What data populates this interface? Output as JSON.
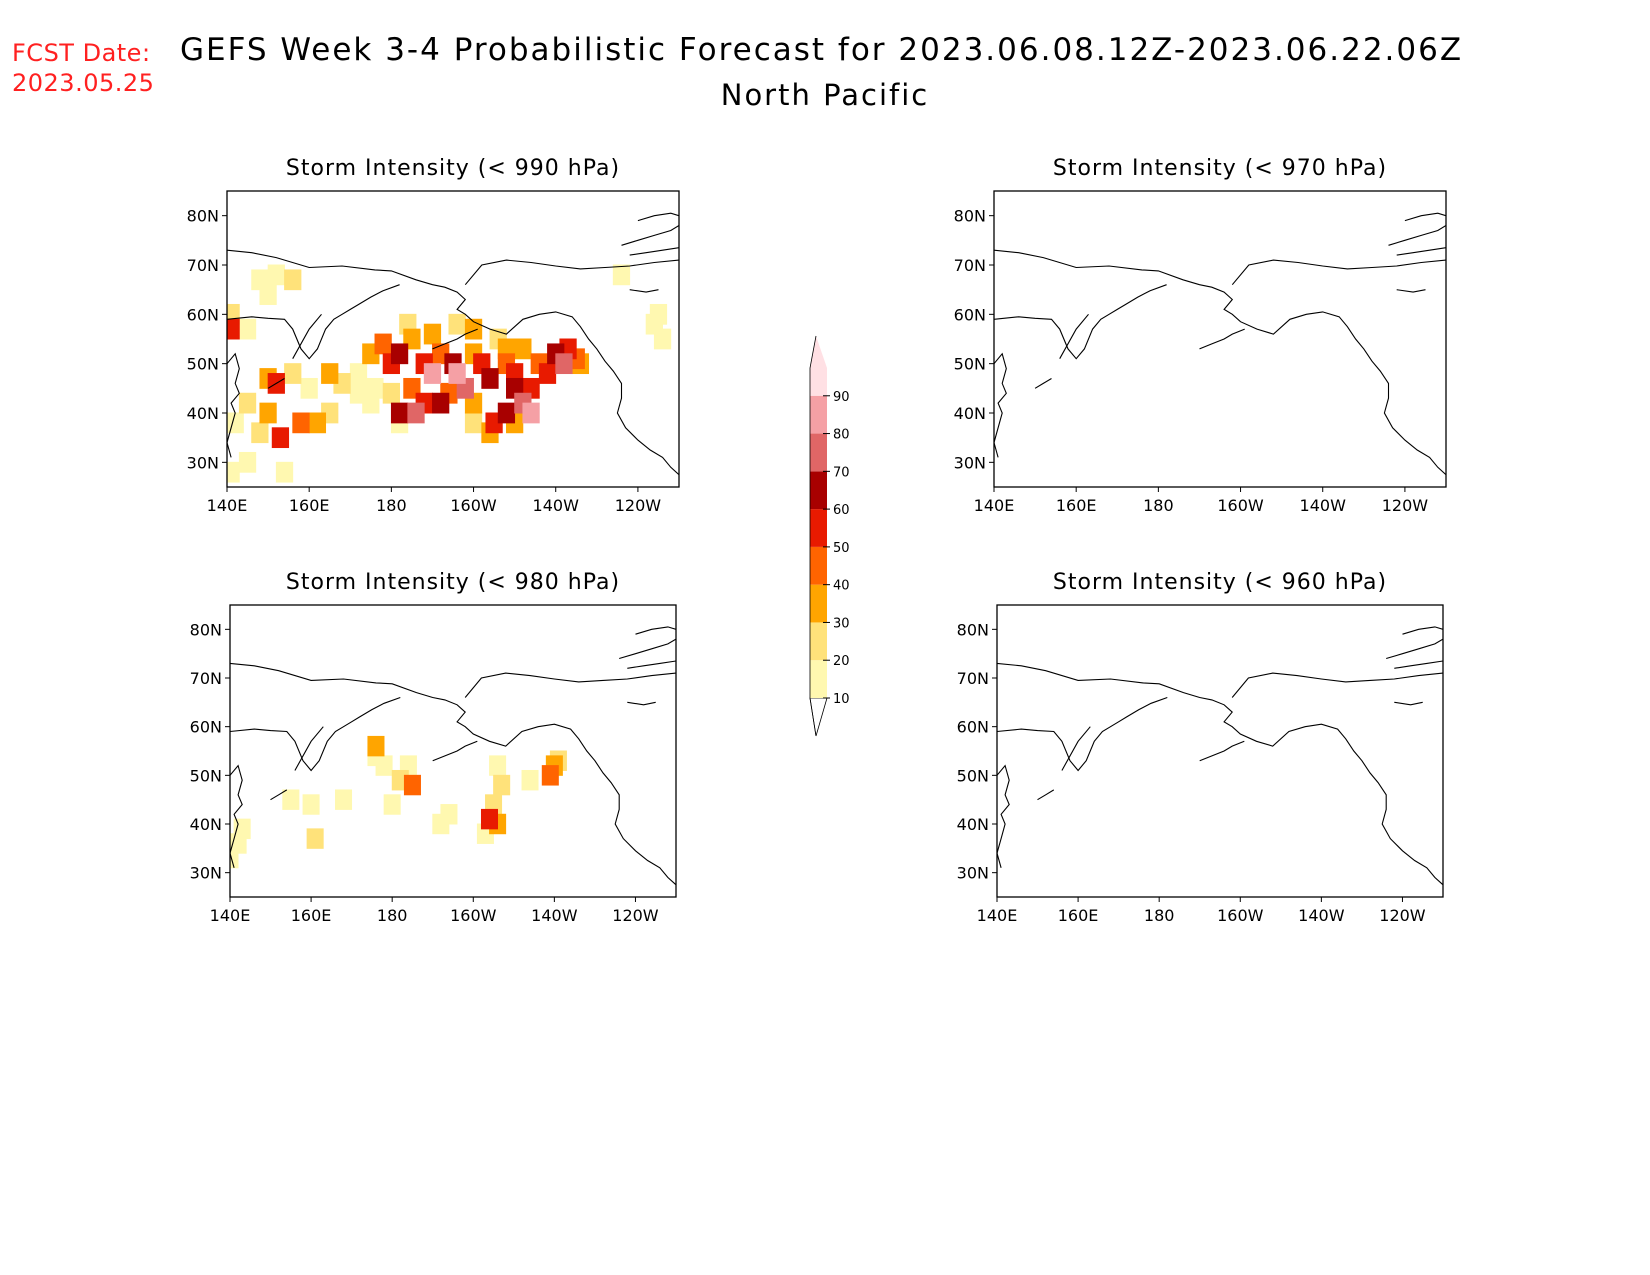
{
  "header": {
    "fcst_label": "FCST Date:",
    "fcst_date": "2023.05.25",
    "title": "GEFS Week 3-4 Probabilistic Forecast for 2023.06.08.12Z-2023.06.22.06Z",
    "subtitle": "North Pacific"
  },
  "axes": {
    "lat_ticks": [
      "80N",
      "70N",
      "60N",
      "50N",
      "40N",
      "30N"
    ],
    "lat_values": [
      80,
      70,
      60,
      50,
      40,
      30
    ],
    "lon_ticks": [
      "140E",
      "160E",
      "180",
      "160W",
      "140W",
      "120W"
    ],
    "lon_values": [
      140,
      160,
      180,
      200,
      220,
      240
    ],
    "lon_range": [
      140,
      250
    ],
    "lat_range": [
      25,
      85
    ]
  },
  "colorbar": {
    "levels": [
      10,
      20,
      30,
      40,
      50,
      60,
      70,
      80,
      90
    ],
    "labels": [
      "10",
      "20",
      "30",
      "40",
      "50",
      "60",
      "70",
      "80",
      "90"
    ],
    "colors": [
      "#fff8b0",
      "#ffe27a",
      "#ffa500",
      "#ff6400",
      "#e81a00",
      "#a80000",
      "#e06666",
      "#f5a0a5",
      "#ffe0e4"
    ]
  },
  "panels": [
    {
      "title": "Storm Intensity (< 990 hPa)",
      "cells": [
        [
          148,
          67,
          15
        ],
        [
          152,
          68,
          15
        ],
        [
          156,
          67,
          20
        ],
        [
          150,
          64,
          15
        ],
        [
          145,
          57,
          15
        ],
        [
          141,
          57,
          50
        ],
        [
          141,
          60,
          20
        ],
        [
          152,
          46,
          50
        ],
        [
          150,
          47,
          30
        ],
        [
          156,
          48,
          20
        ],
        [
          160,
          45,
          15
        ],
        [
          165,
          48,
          30
        ],
        [
          168,
          46,
          20
        ],
        [
          172,
          48,
          15
        ],
        [
          145,
          42,
          20
        ],
        [
          142,
          38,
          15
        ],
        [
          150,
          40,
          30
        ],
        [
          153,
          35,
          50
        ],
        [
          148,
          36,
          20
        ],
        [
          158,
          38,
          40
        ],
        [
          162,
          38,
          30
        ],
        [
          165,
          40,
          20
        ],
        [
          145,
          30,
          15
        ],
        [
          141,
          28,
          10
        ],
        [
          154,
          28,
          10
        ],
        [
          175,
          52,
          30
        ],
        [
          178,
          54,
          40
        ],
        [
          180,
          50,
          50
        ],
        [
          182,
          52,
          60
        ],
        [
          185,
          55,
          30
        ],
        [
          188,
          50,
          50
        ],
        [
          190,
          48,
          80
        ],
        [
          192,
          52,
          40
        ],
        [
          195,
          50,
          60
        ],
        [
          196,
          48,
          80
        ],
        [
          198,
          45,
          70
        ],
        [
          200,
          52,
          30
        ],
        [
          202,
          50,
          50
        ],
        [
          204,
          47,
          60
        ],
        [
          206,
          55,
          20
        ],
        [
          208,
          53,
          30
        ],
        [
          208,
          50,
          40
        ],
        [
          210,
          48,
          50
        ],
        [
          210,
          45,
          60
        ],
        [
          212,
          42,
          70
        ],
        [
          214,
          40,
          80
        ],
        [
          214,
          45,
          50
        ],
        [
          212,
          53,
          30
        ],
        [
          216,
          50,
          40
        ],
        [
          218,
          48,
          50
        ],
        [
          220,
          52,
          60
        ],
        [
          222,
          50,
          70
        ],
        [
          223,
          53,
          50
        ],
        [
          225,
          51,
          40
        ],
        [
          226,
          50,
          30
        ],
        [
          196,
          58,
          20
        ],
        [
          200,
          57,
          30
        ],
        [
          184,
          58,
          20
        ],
        [
          190,
          56,
          30
        ],
        [
          185,
          45,
          40
        ],
        [
          188,
          42,
          50
        ],
        [
          182,
          40,
          60
        ],
        [
          186,
          40,
          70
        ],
        [
          192,
          42,
          60
        ],
        [
          194,
          44,
          40
        ],
        [
          200,
          42,
          30
        ],
        [
          180,
          44,
          20
        ],
        [
          176,
          45,
          15
        ],
        [
          175,
          42,
          15
        ],
        [
          182,
          38,
          15
        ],
        [
          172,
          44,
          10
        ],
        [
          200,
          38,
          20
        ],
        [
          205,
          38,
          50
        ],
        [
          204,
          36,
          30
        ],
        [
          210,
          38,
          30
        ],
        [
          208,
          40,
          60
        ],
        [
          244,
          58,
          15
        ],
        [
          246,
          55,
          10
        ],
        [
          245,
          60,
          10
        ],
        [
          236,
          68,
          10
        ]
      ]
    },
    {
      "title": "Storm Intensity (< 970 hPa)",
      "cells": []
    },
    {
      "title": "Storm Intensity (< 980 hPa)",
      "cells": [
        [
          176,
          54,
          15
        ],
        [
          178,
          52,
          15
        ],
        [
          176,
          56,
          30
        ],
        [
          182,
          49,
          20
        ],
        [
          184,
          52,
          15
        ],
        [
          185,
          48,
          40
        ],
        [
          206,
          52,
          15
        ],
        [
          207,
          48,
          20
        ],
        [
          205,
          44,
          20
        ],
        [
          206,
          40,
          30
        ],
        [
          204,
          41,
          50
        ],
        [
          203,
          38,
          15
        ],
        [
          220,
          52,
          30
        ],
        [
          219,
          50,
          40
        ],
        [
          221,
          53,
          20
        ],
        [
          214,
          49,
          10
        ],
        [
          143,
          39,
          15
        ],
        [
          142,
          36,
          10
        ],
        [
          140,
          33,
          10
        ],
        [
          161,
          37,
          20
        ],
        [
          160,
          44,
          15
        ],
        [
          155,
          45,
          10
        ],
        [
          168,
          45,
          10
        ],
        [
          192,
          40,
          15
        ],
        [
          194,
          42,
          10
        ],
        [
          180,
          44,
          10
        ]
      ]
    },
    {
      "title": "Storm Intensity (< 960 hPa)",
      "cells": []
    }
  ]
}
